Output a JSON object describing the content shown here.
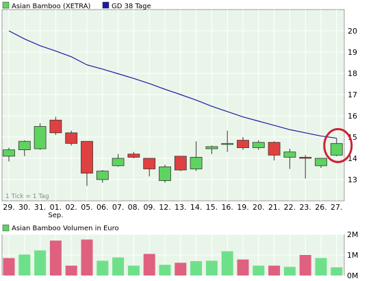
{
  "chart_data": [
    {
      "type": "candlestick",
      "legend": [
        {
          "label": "Asian Bamboo (XETRA)",
          "color": "#5fd35f"
        },
        {
          "label": "GD 38 Tage",
          "color": "#1a1aa0"
        }
      ],
      "note": "1 Tick = 1 Tag",
      "x_labels": [
        "29.",
        "30.",
        "31.",
        "01.",
        "02.",
        "05.",
        "06.",
        "07.",
        "08.",
        "09.",
        "12.",
        "13.",
        "14.",
        "15.",
        "16.",
        "19.",
        "20.",
        "21.",
        "22.",
        "23.",
        "26.",
        "27."
      ],
      "x_sublabel": "Sep.",
      "y_ticks": [
        13,
        14,
        15,
        16,
        17,
        18,
        19,
        20
      ],
      "y_tick_labels": [
        "13",
        "14",
        "15",
        "16",
        "17",
        "18",
        "19",
        "20"
      ],
      "ylim": [
        12.0,
        21.0
      ],
      "candles": [
        {
          "o": 14.1,
          "h": 14.5,
          "l": 13.85,
          "c": 14.4
        },
        {
          "o": 14.4,
          "h": 14.85,
          "l": 14.1,
          "c": 14.8
        },
        {
          "o": 14.45,
          "h": 15.65,
          "l": 14.4,
          "c": 15.5
        },
        {
          "o": 15.8,
          "h": 15.95,
          "l": 15.1,
          "c": 15.2
        },
        {
          "o": 15.2,
          "h": 15.3,
          "l": 14.6,
          "c": 14.7
        },
        {
          "o": 14.8,
          "h": 14.8,
          "l": 12.7,
          "c": 13.3
        },
        {
          "o": 13.0,
          "h": 13.45,
          "l": 12.85,
          "c": 13.4
        },
        {
          "o": 13.65,
          "h": 14.2,
          "l": 13.6,
          "c": 14.0
        },
        {
          "o": 14.2,
          "h": 14.3,
          "l": 14.0,
          "c": 14.05
        },
        {
          "o": 14.0,
          "h": 14.0,
          "l": 13.15,
          "c": 13.5
        },
        {
          "o": 12.95,
          "h": 13.7,
          "l": 12.85,
          "c": 13.6
        },
        {
          "o": 14.1,
          "h": 14.1,
          "l": 13.4,
          "c": 13.45
        },
        {
          "o": 13.5,
          "h": 14.8,
          "l": 13.4,
          "c": 14.05
        },
        {
          "o": 14.45,
          "h": 14.6,
          "l": 14.2,
          "c": 14.55
        },
        {
          "o": 14.7,
          "h": 15.3,
          "l": 14.3,
          "c": 14.7
        },
        {
          "o": 14.85,
          "h": 15.0,
          "l": 14.4,
          "c": 14.5
        },
        {
          "o": 14.5,
          "h": 14.85,
          "l": 14.4,
          "c": 14.75
        },
        {
          "o": 14.75,
          "h": 14.8,
          "l": 13.9,
          "c": 14.15
        },
        {
          "o": 14.05,
          "h": 14.45,
          "l": 13.5,
          "c": 14.3
        },
        {
          "o": 14.05,
          "h": 14.15,
          "l": 13.05,
          "c": 14.0
        },
        {
          "o": 13.65,
          "h": 14.0,
          "l": 13.55,
          "c": 14.0
        },
        {
          "o": 14.15,
          "h": 14.95,
          "l": 14.1,
          "c": 14.7
        }
      ],
      "moving_average": {
        "name": "GD 38 Tage",
        "values": [
          20.0,
          19.62,
          19.3,
          19.05,
          18.78,
          18.4,
          18.2,
          17.98,
          17.76,
          17.52,
          17.25,
          17.0,
          16.74,
          16.45,
          16.2,
          15.95,
          15.75,
          15.55,
          15.35,
          15.2,
          15.05,
          14.95
        ]
      },
      "highlight": "circle around last candle"
    },
    {
      "type": "bar",
      "legend": [
        {
          "label": "Asian Bamboo Volumen in Euro",
          "color": "#5fd35f"
        }
      ],
      "y_ticks": [
        0,
        1,
        2
      ],
      "y_tick_labels": [
        "0M",
        "1M",
        "2M"
      ],
      "ylim": [
        0,
        2.0
      ],
      "values": [
        0.85,
        1.02,
        1.22,
        1.7,
        0.48,
        1.75,
        0.72,
        0.88,
        0.48,
        1.05,
        0.52,
        0.62,
        0.7,
        0.72,
        1.18,
        0.78,
        0.48,
        0.48,
        0.42,
        1.0,
        0.85,
        0.4
      ],
      "colors": [
        "red",
        "green",
        "green",
        "red",
        "red",
        "red",
        "green",
        "green",
        "green",
        "red",
        "green",
        "red",
        "green",
        "green",
        "green",
        "red",
        "green",
        "red",
        "green",
        "red",
        "green",
        "green"
      ]
    }
  ],
  "colors": {
    "up": "#5fd35f",
    "down": "#e04040",
    "ma": "#1a1aa0",
    "vol_up": "#6fe08a",
    "vol_down": "#e06080",
    "highlight": "#cc2233"
  }
}
